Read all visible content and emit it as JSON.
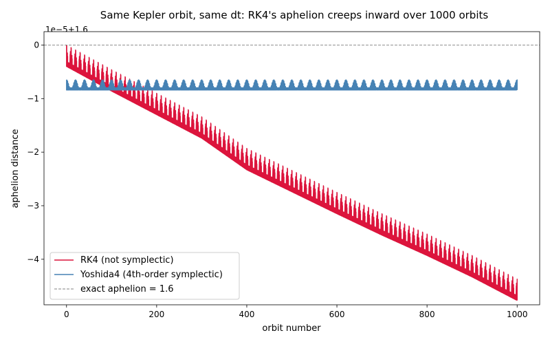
{
  "chart_data": {
    "type": "line",
    "title": "Same Kepler orbit, same dt: RK4's aphelion creeps inward over 1000 orbits",
    "xlabel": "orbit number",
    "ylabel": "aphelion distance",
    "offset_label": "1e−5+1.6",
    "xlim": [
      -50,
      1050
    ],
    "ylim": [
      -4.85,
      0.25
    ],
    "y_unit_scale": "1e-5",
    "y_offset": 1.6,
    "xticks": [
      0,
      200,
      400,
      600,
      800,
      1000
    ],
    "xtick_labels": [
      "0",
      "200",
      "400",
      "600",
      "800",
      "1000"
    ],
    "yticks": [
      0,
      -1,
      -2,
      -3,
      -4
    ],
    "ytick_labels": [
      "0",
      "−1",
      "−2",
      "−3",
      "−4"
    ],
    "grid": false,
    "legend_position": "lower-left",
    "series": [
      {
        "name": "RK4 (not symplectic)",
        "color": "#dc143c",
        "style": "solid",
        "x": [
          0,
          100,
          200,
          300,
          400,
          500,
          600,
          700,
          800,
          900,
          1000
        ],
        "y": [
          -0.15,
          -0.61,
          -1.05,
          -1.49,
          -2.08,
          -2.49,
          -2.9,
          -3.3,
          -3.68,
          -4.08,
          -4.52
        ],
        "oscillation_range": [
          -0.25,
          0.15
        ],
        "oscillation_period": 10
      },
      {
        "name": "Yoshida4 (4th-order symplectic)",
        "color": "#4682b4",
        "style": "solid",
        "x": [
          0,
          1000
        ],
        "y": [
          -0.38,
          -0.38
        ],
        "oscillation_range": [
          -0.46,
          -0.27
        ],
        "oscillation_period": 20
      },
      {
        "name": "exact aphelion = 1.6",
        "color": "#808080",
        "style": "dashed",
        "y": 0
      }
    ]
  }
}
